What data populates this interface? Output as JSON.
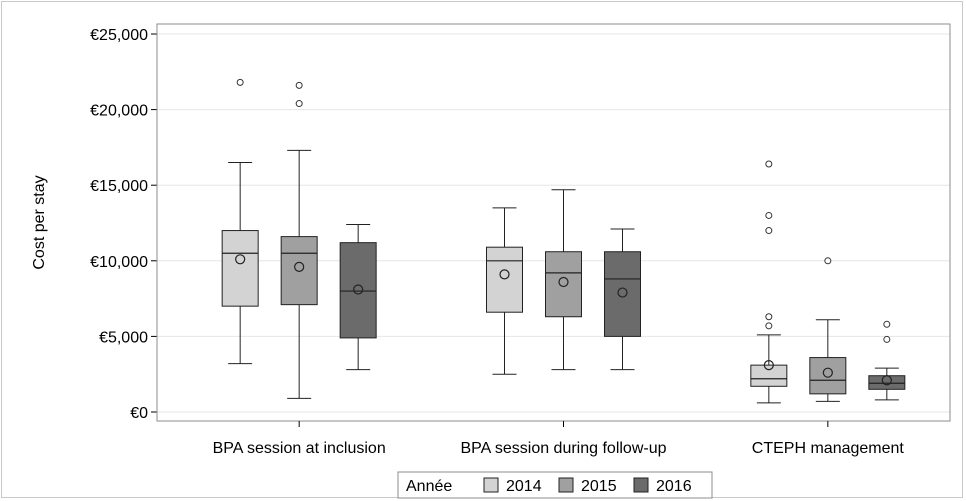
{
  "chart_data": {
    "type": "box",
    "title": "",
    "xlabel": "",
    "ylabel": "Cost per stay",
    "ylim": [
      0,
      25000
    ],
    "yticks": [
      {
        "value": 0,
        "label": "€0"
      },
      {
        "value": 5000,
        "label": "€5,000"
      },
      {
        "value": 10000,
        "label": "€10,000"
      },
      {
        "value": 15000,
        "label": "€15,000"
      },
      {
        "value": 20000,
        "label": "€20,000"
      },
      {
        "value": 25000,
        "label": "€25,000"
      }
    ],
    "grid": "horizontal",
    "categories": [
      "BPA session at inclusion",
      "BPA session during follow-up",
      "CTEPH management"
    ],
    "legend": {
      "title": "Année",
      "placement": "bottom",
      "entries": [
        "2014",
        "2015",
        "2016"
      ]
    },
    "series": [
      {
        "name": "2014",
        "color": "#d3d3d3",
        "boxes": [
          {
            "min": 3200,
            "q1": 7000,
            "median": 10500,
            "q3": 12000,
            "max": 16500,
            "mean": 10100,
            "outliers": [
              21800
            ]
          },
          {
            "min": 2500,
            "q1": 6600,
            "median": 10000,
            "q3": 10900,
            "max": 13500,
            "mean": 9100,
            "outliers": []
          },
          {
            "min": 600,
            "q1": 1700,
            "median": 2200,
            "q3": 3100,
            "max": 5100,
            "mean": 3100,
            "outliers": [
              5700,
              6300,
              12000,
              13000,
              16400
            ]
          }
        ]
      },
      {
        "name": "2015",
        "color": "#a0a0a0",
        "boxes": [
          {
            "min": 900,
            "q1": 7100,
            "median": 10500,
            "q3": 11600,
            "max": 17300,
            "mean": 9600,
            "outliers": [
              20400,
              21600
            ]
          },
          {
            "min": 2800,
            "q1": 6300,
            "median": 9200,
            "q3": 10600,
            "max": 14700,
            "mean": 8600,
            "outliers": []
          },
          {
            "min": 700,
            "q1": 1200,
            "median": 2100,
            "q3": 3600,
            "max": 6100,
            "mean": 2600,
            "outliers": [
              10000
            ]
          }
        ]
      },
      {
        "name": "2016",
        "color": "#6b6b6b",
        "boxes": [
          {
            "min": 2800,
            "q1": 4900,
            "median": 8000,
            "q3": 11200,
            "max": 12400,
            "mean": 8100,
            "outliers": []
          },
          {
            "min": 2800,
            "q1": 5000,
            "median": 8800,
            "q3": 10600,
            "max": 12100,
            "mean": 7900,
            "outliers": []
          },
          {
            "min": 800,
            "q1": 1500,
            "median": 1900,
            "q3": 2400,
            "max": 2900,
            "mean": 2100,
            "outliers": [
              4800,
              5800
            ]
          }
        ]
      }
    ]
  }
}
